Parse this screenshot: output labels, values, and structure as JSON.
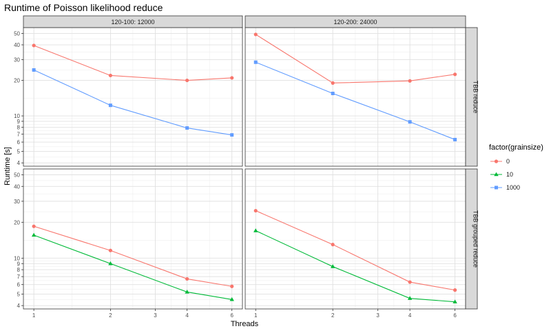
{
  "chart_data": {
    "type": "line",
    "title": "Runtime of Poisson likelihood reduce",
    "xlabel": "Threads",
    "ylabel": "Runtime [s]",
    "x_scale": "log",
    "y_scale": "log",
    "xlim": [
      0.91,
      6.6
    ],
    "ylim": [
      3.75,
      56
    ],
    "x_ticks": [
      1,
      2,
      3,
      4,
      6
    ],
    "y_ticks": [
      4,
      5,
      6,
      7,
      8,
      9,
      10,
      20,
      30,
      40,
      50
    ],
    "grid": true,
    "legend": {
      "title": "factor(grainsize)",
      "position": "right",
      "entries": [
        {
          "label": "0",
          "color": "#F8766D",
          "shape": "circle"
        },
        {
          "label": "10",
          "color": "#00BA38",
          "shape": "triangle"
        },
        {
          "label": "1000",
          "color": "#619CFF",
          "shape": "square"
        }
      ]
    },
    "col_strips": [
      "120-100: 12000",
      "120-200: 24000"
    ],
    "row_strips": [
      "TBB reduce",
      "TBB grouped reduce"
    ],
    "panels": [
      {
        "row": 0,
        "col": 0,
        "series": [
          {
            "name": "0",
            "x": [
              1,
              2,
              4,
              6
            ],
            "y": [
              39.5,
              22,
              20,
              21
            ]
          },
          {
            "name": "1000",
            "x": [
              1,
              2,
              4,
              6
            ],
            "y": [
              24.5,
              12.3,
              7.9,
              6.9
            ]
          }
        ]
      },
      {
        "row": 0,
        "col": 1,
        "series": [
          {
            "name": "0",
            "x": [
              1,
              2,
              4,
              6
            ],
            "y": [
              49,
              19,
              19.8,
              22.5
            ]
          },
          {
            "name": "1000",
            "x": [
              1,
              2,
              4,
              6
            ],
            "y": [
              28.5,
              15.5,
              8.9,
              6.3
            ]
          }
        ]
      },
      {
        "row": 1,
        "col": 0,
        "series": [
          {
            "name": "0",
            "x": [
              1,
              2,
              4,
              6
            ],
            "y": [
              18.5,
              11.6,
              6.7,
              5.8
            ]
          },
          {
            "name": "10",
            "x": [
              1,
              2,
              4,
              6
            ],
            "y": [
              15.6,
              9.0,
              5.2,
              4.5
            ]
          }
        ]
      },
      {
        "row": 1,
        "col": 1,
        "series": [
          {
            "name": "0",
            "x": [
              1,
              2,
              4,
              6
            ],
            "y": [
              25,
              13,
              6.3,
              5.4
            ]
          },
          {
            "name": "10",
            "x": [
              1,
              2,
              4,
              6
            ],
            "y": [
              17,
              8.5,
              4.6,
              4.3
            ]
          }
        ]
      }
    ]
  }
}
